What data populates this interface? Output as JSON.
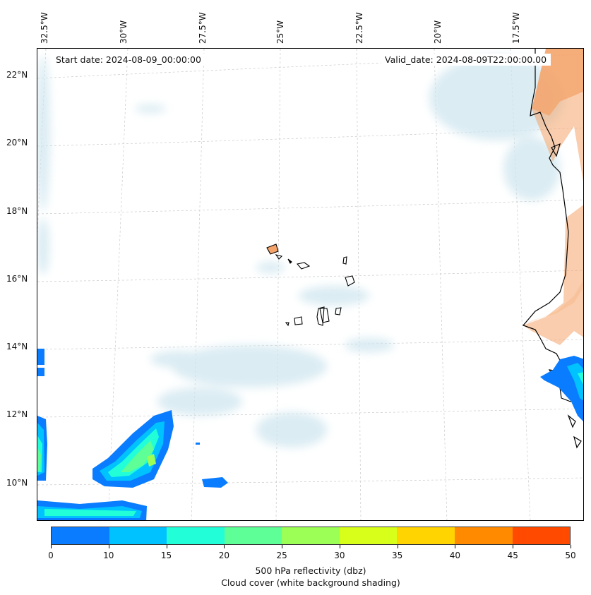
{
  "map": {
    "start_date": "Start date: 2024-08-09_00:00:00",
    "valid_date": "Valid_date: 2024-08-09T22:00:00.00",
    "lon_labels": [
      "32.5°W",
      "30°W",
      "27.5°W",
      "25°W",
      "22.5°W",
      "20°W",
      "17.5°W"
    ],
    "lat_labels": [
      "22°N",
      "20°N",
      "18°N",
      "16°N",
      "14°N",
      "12°N",
      "10°N"
    ],
    "land_color": "#f4a46a",
    "cloud_color": "#cfe6ef"
  },
  "colorbar": {
    "ticks": [
      "0",
      "10",
      "15",
      "20",
      "25",
      "30",
      "35",
      "40",
      "45",
      "50"
    ],
    "colors": [
      "#0a7cff",
      "#00c2ff",
      "#22ffd8",
      "#5eff96",
      "#9cff55",
      "#d8ff1a",
      "#ffd400",
      "#ff8a00",
      "#ff4a00"
    ],
    "title_line1": "500 hPa reflectivity (dbz)",
    "title_line2": "Cloud cover (white background shading)"
  }
}
